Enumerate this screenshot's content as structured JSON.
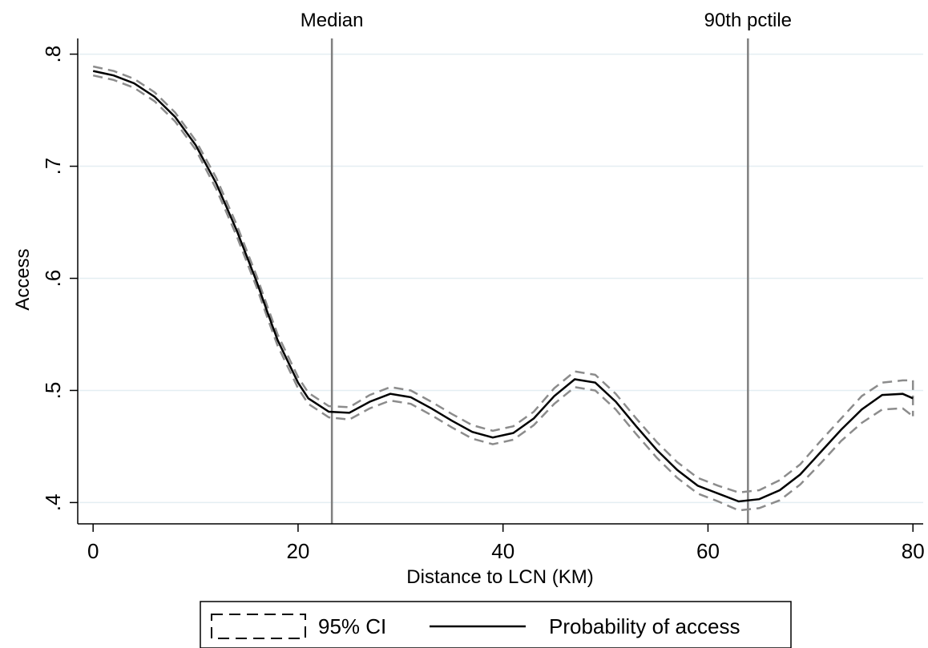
{
  "chart_data": {
    "type": "line",
    "title": "",
    "xlabel": "Distance to LCN (KM)",
    "ylabel": "Access",
    "xlim": [
      -1.5,
      81
    ],
    "ylim": [
      0.381,
      0.814
    ],
    "xticks": [
      0,
      20,
      40,
      60,
      80
    ],
    "xtick_labels": [
      "0",
      "20",
      "40",
      "60",
      "80"
    ],
    "yticks": [
      0.4,
      0.5,
      0.6,
      0.7,
      0.8
    ],
    "ytick_labels": [
      ".4",
      ".5",
      ".6",
      ".7",
      ".8"
    ],
    "grid": "horizontal",
    "x": [
      0,
      2,
      4,
      6,
      8,
      10,
      12,
      14,
      16,
      17,
      18,
      20,
      21,
      23,
      25,
      27,
      29,
      31,
      33,
      35,
      37,
      39,
      41,
      43,
      45,
      47,
      49,
      51,
      53,
      55,
      57,
      59,
      61,
      63,
      65,
      67,
      69,
      71,
      73,
      75,
      77,
      79,
      80
    ],
    "series": [
      {
        "name": "Probability of access",
        "style": "solid",
        "color": "#000000",
        "values": [
          0.785,
          0.781,
          0.774,
          0.762,
          0.744,
          0.719,
          0.685,
          0.643,
          0.596,
          0.57,
          0.545,
          0.507,
          0.493,
          0.481,
          0.48,
          0.49,
          0.497,
          0.494,
          0.484,
          0.473,
          0.463,
          0.458,
          0.462,
          0.475,
          0.495,
          0.51,
          0.507,
          0.49,
          0.468,
          0.447,
          0.429,
          0.415,
          0.408,
          0.401,
          0.403,
          0.411,
          0.425,
          0.445,
          0.465,
          0.483,
          0.496,
          0.497,
          0.493
        ]
      },
      {
        "name": "95% CI",
        "style": "dashed",
        "color": "#8c8c8c",
        "upper": [
          0.789,
          0.785,
          0.778,
          0.766,
          0.748,
          0.723,
          0.69,
          0.648,
          0.601,
          0.575,
          0.55,
          0.512,
          0.498,
          0.486,
          0.485,
          0.496,
          0.503,
          0.5,
          0.49,
          0.479,
          0.469,
          0.464,
          0.468,
          0.481,
          0.502,
          0.517,
          0.514,
          0.497,
          0.475,
          0.454,
          0.436,
          0.422,
          0.415,
          0.409,
          0.411,
          0.42,
          0.434,
          0.455,
          0.475,
          0.495,
          0.507,
          0.509,
          0.509
        ],
        "lower": [
          0.781,
          0.777,
          0.77,
          0.758,
          0.74,
          0.715,
          0.68,
          0.638,
          0.591,
          0.565,
          0.54,
          0.502,
          0.488,
          0.476,
          0.474,
          0.484,
          0.491,
          0.488,
          0.478,
          0.467,
          0.457,
          0.452,
          0.456,
          0.469,
          0.488,
          0.503,
          0.5,
          0.483,
          0.461,
          0.44,
          0.422,
          0.408,
          0.401,
          0.393,
          0.395,
          0.402,
          0.416,
          0.435,
          0.455,
          0.471,
          0.483,
          0.484,
          0.477
        ]
      }
    ],
    "reference_lines": [
      {
        "x": 23.3,
        "label": "Median"
      },
      {
        "x": 63.9,
        "label": "90th pctile"
      }
    ],
    "legend": {
      "position": "bottom-center",
      "entries": [
        "95% CI",
        "Probability of access"
      ]
    }
  }
}
